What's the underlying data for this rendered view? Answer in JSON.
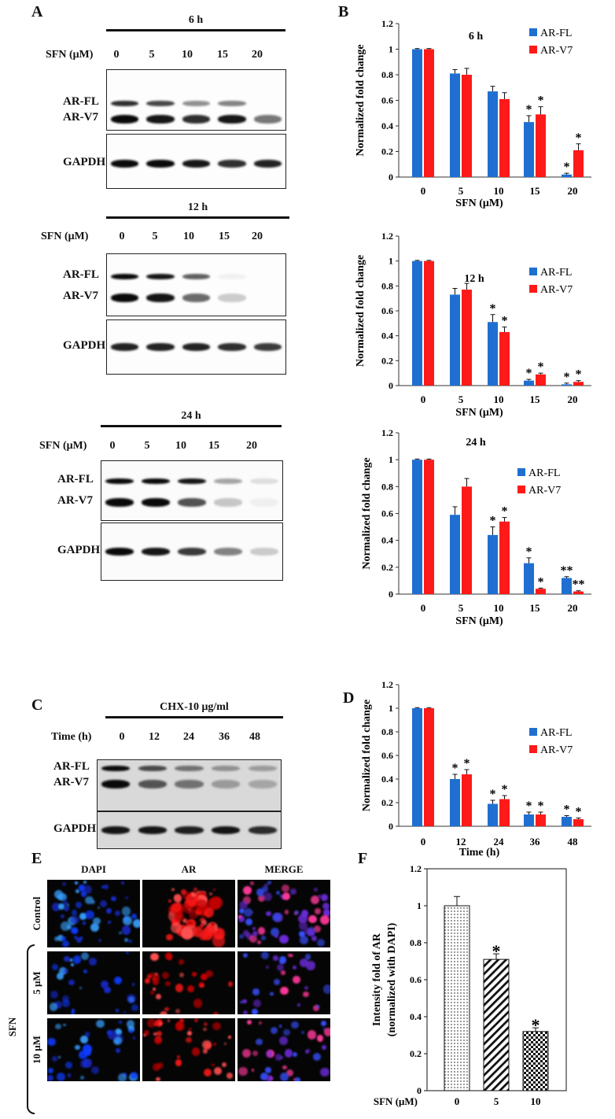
{
  "panel_labels": {
    "A": "A",
    "B": "B",
    "C": "C",
    "D": "D",
    "E": "E",
    "F": "F"
  },
  "blots": [
    {
      "time": "6 h",
      "x_label": "SFN (μM)",
      "lanes": [
        "0",
        "5",
        "10",
        "15",
        "20"
      ],
      "bands": [
        "AR-FL",
        "AR-V7"
      ],
      "loading": "GAPDH"
    },
    {
      "time": "12 h",
      "x_label": "SFN (μM)",
      "lanes": [
        "0",
        "5",
        "10",
        "15",
        "20"
      ],
      "bands": [
        "AR-FL",
        "AR-V7"
      ],
      "loading": "GAPDH"
    },
    {
      "time": "24 h",
      "x_label": "SFN (μM)",
      "lanes": [
        "0",
        "5",
        "10",
        "15",
        "20"
      ],
      "bands": [
        "AR-FL",
        "AR-V7"
      ],
      "loading": "GAPDH"
    },
    {
      "time": "CHX-10 μg/ml",
      "x_label": "Time (h)",
      "lanes": [
        "0",
        "12",
        "24",
        "36",
        "48"
      ],
      "bands": [
        "AR-FL",
        "AR-V7"
      ],
      "loading": "GAPDH"
    }
  ],
  "micrographs": {
    "columns": [
      "DAPI",
      "AR",
      "MERGE"
    ],
    "rows": [
      "Control",
      "5 μM",
      "10 μM"
    ],
    "group_label": "SFN"
  },
  "chart_data": [
    {
      "type": "bar",
      "title": "6 h",
      "xlabel": "SFN (μM)",
      "ylabel": "Normalized  fold change",
      "categories": [
        "0",
        "5",
        "10",
        "15",
        "20"
      ],
      "ylim": [
        0,
        1.2
      ],
      "yticks": [
        "0",
        "0.2",
        "0.4",
        "0.6",
        "0.8",
        "1",
        "1.2"
      ],
      "legend": "right",
      "series": [
        {
          "name": "AR-FL",
          "color": "#1f6fd1",
          "values": [
            1.0,
            0.81,
            0.67,
            0.43,
            0.02
          ],
          "errors": [
            0.005,
            0.03,
            0.04,
            0.05,
            0.01
          ],
          "sig": [
            "",
            "",
            "",
            "*",
            "*"
          ]
        },
        {
          "name": "AR-V7",
          "color": "#ff1a1a",
          "values": [
            1.0,
            0.8,
            0.61,
            0.49,
            0.21
          ],
          "errors": [
            0.005,
            0.05,
            0.05,
            0.06,
            0.05
          ],
          "sig": [
            "",
            "",
            "",
            "*",
            "*"
          ]
        }
      ]
    },
    {
      "type": "bar",
      "title": "12 h",
      "xlabel": "SFN (μM)",
      "ylabel": "Normalized fold change",
      "categories": [
        "0",
        "5",
        "10",
        "15",
        "20"
      ],
      "ylim": [
        0,
        1.2
      ],
      "yticks": [
        "0",
        "0.2",
        "0.4",
        "0.6",
        "0.8",
        "1",
        "1.2"
      ],
      "legend": "right",
      "series": [
        {
          "name": "AR-FL",
          "color": "#1f6fd1",
          "values": [
            1.0,
            0.73,
            0.51,
            0.04,
            0.01
          ],
          "errors": [
            0.005,
            0.05,
            0.06,
            0.01,
            0.01
          ],
          "sig": [
            "",
            "",
            "*",
            "*",
            "*"
          ]
        },
        {
          "name": "AR-V7",
          "color": "#ff1a1a",
          "values": [
            1.0,
            0.77,
            0.43,
            0.09,
            0.03
          ],
          "errors": [
            0.005,
            0.05,
            0.04,
            0.01,
            0.01
          ],
          "sig": [
            "",
            "",
            "*",
            "*",
            "*"
          ]
        }
      ]
    },
    {
      "type": "bar",
      "title": "24 h",
      "xlabel": "SFN  (μM)",
      "ylabel": "Normalized fold change",
      "categories": [
        "0",
        "5",
        "10",
        "15",
        "20"
      ],
      "ylim": [
        0,
        1.2
      ],
      "yticks": [
        "0",
        "0.2",
        "0.4",
        "0.6",
        "0.8",
        "1",
        "1.2"
      ],
      "legend": "right",
      "series": [
        {
          "name": "AR-FL",
          "color": "#1f6fd1",
          "values": [
            1.0,
            0.59,
            0.44,
            0.23,
            0.12
          ],
          "errors": [
            0.005,
            0.06,
            0.06,
            0.04,
            0.01
          ],
          "sig": [
            "",
            "",
            "*",
            "*",
            "**"
          ]
        },
        {
          "name": "AR-V7",
          "color": "#ff1a1a",
          "values": [
            1.0,
            0.8,
            0.54,
            0.04,
            0.02
          ],
          "errors": [
            0.005,
            0.06,
            0.03,
            0.005,
            0.005
          ],
          "sig": [
            "",
            "",
            "*",
            "*",
            "**"
          ]
        }
      ]
    },
    {
      "type": "bar",
      "title": "",
      "xlabel": "Time (h)",
      "ylabel": "Normalized fold change",
      "categories": [
        "0",
        "12",
        "24",
        "36",
        "48"
      ],
      "ylim": [
        0,
        1.2
      ],
      "yticks": [
        "0",
        "0.2",
        "0.4",
        "0.6",
        "0.8",
        "1",
        "1.2"
      ],
      "legend": "right",
      "series": [
        {
          "name": "AR-FL",
          "color": "#1f6fd1",
          "values": [
            1.0,
            0.4,
            0.19,
            0.1,
            0.08
          ],
          "errors": [
            0.005,
            0.04,
            0.03,
            0.02,
            0.01
          ],
          "sig": [
            "",
            "*",
            "*",
            "*",
            "*"
          ]
        },
        {
          "name": "AR-V7",
          "color": "#ff1a1a",
          "values": [
            1.0,
            0.44,
            0.23,
            0.1,
            0.06
          ],
          "errors": [
            0.005,
            0.04,
            0.03,
            0.02,
            0.01
          ],
          "sig": [
            "",
            "*",
            "*",
            "*",
            "*"
          ]
        }
      ]
    },
    {
      "type": "bar",
      "title": "",
      "xlabel": "SFN (μM)",
      "ylabel": "Intensity fold of AR",
      "ylabel2": "(normalized with DAPI)",
      "categories": [
        "0",
        "5",
        "10"
      ],
      "ylim": [
        0,
        1.2
      ],
      "yticks": [
        "0",
        "0.2",
        "0.4",
        "0.6",
        "0.8",
        "1",
        "1.2"
      ],
      "series": [
        {
          "values": [
            1.0,
            0.71,
            0.32
          ],
          "errors": [
            0.05,
            0.03,
            0.02
          ],
          "sig": [
            "",
            "*",
            "*"
          ],
          "patterns": [
            "dots",
            "diagonal",
            "checker"
          ]
        }
      ]
    }
  ]
}
